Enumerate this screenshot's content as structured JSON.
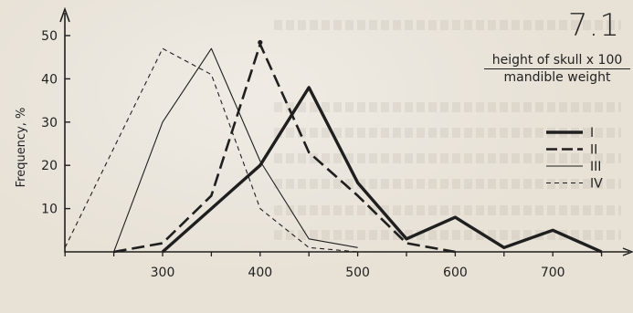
{
  "figure_number": "7.1",
  "legend_title": {
    "numerator": "height of skull x 100",
    "denominator": "mandible weight"
  },
  "colors": {
    "ink": "#1f1f1f",
    "paper": "#e7e1d6"
  },
  "chart_data": {
    "type": "line",
    "title": "",
    "xlabel": "",
    "ylabel": "Frequency, %",
    "xlim": [
      0,
      800
    ],
    "ylim": [
      0,
      50
    ],
    "x_ticks": [
      300,
      400,
      500,
      600,
      700
    ],
    "y_ticks": [
      10,
      20,
      30,
      40,
      50
    ],
    "grid": false,
    "legend_position": "top-right",
    "series": [
      {
        "name": "I",
        "style": "solid-heavy",
        "points": [
          [
            300,
            0
          ],
          [
            350,
            10
          ],
          [
            400,
            20
          ],
          [
            450,
            38
          ],
          [
            500,
            16
          ],
          [
            550,
            3
          ],
          [
            600,
            8
          ],
          [
            650,
            1
          ],
          [
            700,
            5
          ],
          [
            750,
            0
          ]
        ]
      },
      {
        "name": "II",
        "style": "dashed-long",
        "points": [
          [
            250,
            0
          ],
          [
            300,
            2
          ],
          [
            350,
            13
          ],
          [
            400,
            48
          ],
          [
            450,
            23
          ],
          [
            500,
            13
          ],
          [
            550,
            2
          ],
          [
            600,
            0
          ]
        ]
      },
      {
        "name": "III",
        "style": "solid-thin",
        "points": [
          [
            250,
            0
          ],
          [
            300,
            30
          ],
          [
            350,
            47
          ],
          [
            400,
            21
          ],
          [
            450,
            3
          ],
          [
            500,
            1
          ]
        ]
      },
      {
        "name": "IV",
        "style": "dashed-short",
        "points": [
          [
            200,
            1
          ],
          [
            300,
            47
          ],
          [
            350,
            41
          ],
          [
            400,
            10
          ],
          [
            450,
            1
          ],
          [
            500,
            0
          ]
        ]
      }
    ]
  }
}
